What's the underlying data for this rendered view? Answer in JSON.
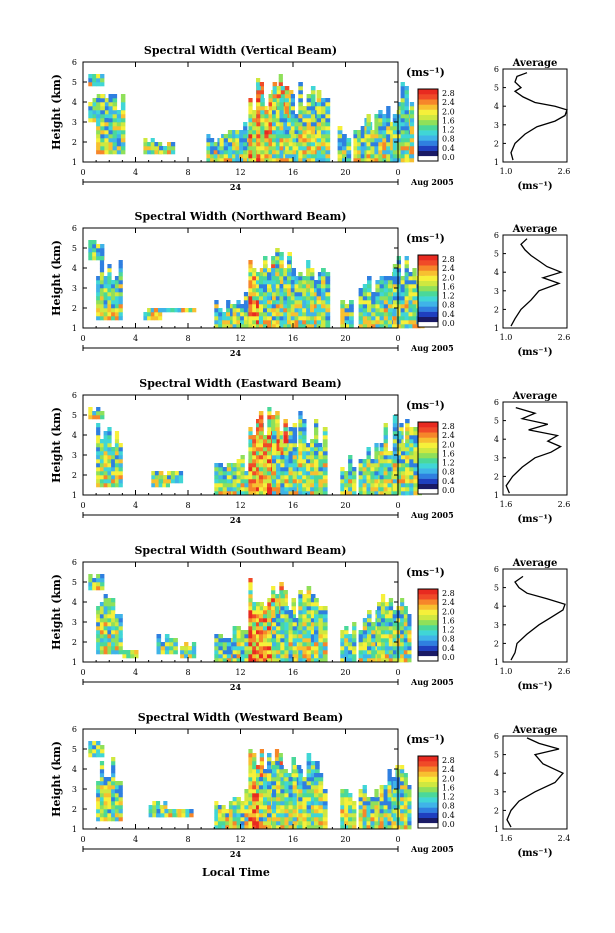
{
  "colorbar": {
    "unit_label": "(ms⁻¹)",
    "ticks": [
      "0.0",
      "0.4",
      "0.8",
      "1.2",
      "1.6",
      "2.0",
      "2.4",
      "2.8"
    ],
    "colors": [
      "#ffffff",
      "#1a1a66",
      "#1f3fbf",
      "#2f7fe0",
      "#3fb4e8",
      "#40d6d6",
      "#4ad89a",
      "#8fe05a",
      "#cfe840",
      "#f6f03a",
      "#f7c030",
      "#f6862a",
      "#f04a28",
      "#e82a20"
    ]
  },
  "footer": {
    "xlabel": "Local Time"
  },
  "chart_data": [
    {
      "type": "heatmap",
      "title": "Spectral Width (Vertical Beam)",
      "ylabel": "Height (km)",
      "yticks": [
        "1",
        "2",
        "3",
        "4",
        "5",
        "6"
      ],
      "xticks": [
        "0",
        "4",
        "8",
        "12",
        "16",
        "20",
        "0"
      ],
      "date_day": "24",
      "date_label": "Aug 2005",
      "ylim": [
        1,
        6
      ],
      "xlim": [
        0,
        24
      ],
      "cells": [
        [
          0.4,
          4.8,
          5.4,
          1.2
        ],
        [
          0.4,
          3.0,
          4.6,
          1.6
        ],
        [
          1.0,
          1.4,
          4.4,
          2.2
        ],
        [
          4.6,
          1.4,
          2.2,
          1.4
        ],
        [
          5.8,
          1.4,
          2.0,
          1.2
        ],
        [
          9.4,
          1.0,
          2.4,
          1.4
        ],
        [
          10.4,
          1.0,
          2.8,
          1.6
        ],
        [
          11.6,
          1.0,
          3.0,
          1.8
        ],
        [
          12.6,
          1.0,
          5.4,
          2.6
        ],
        [
          13.2,
          1.0,
          5.2,
          2.8
        ],
        [
          14.4,
          1.0,
          4.4,
          2.0
        ],
        [
          15.4,
          1.0,
          2.8,
          1.4
        ],
        [
          16.4,
          1.0,
          5.2,
          1.6
        ],
        [
          17.8,
          1.0,
          4.6,
          1.0
        ],
        [
          19.4,
          1.0,
          2.8,
          1.0
        ],
        [
          20.6,
          1.0,
          3.4,
          1.4
        ],
        [
          21.6,
          1.0,
          3.6,
          1.8
        ],
        [
          22.8,
          1.0,
          4.2,
          2.4
        ],
        [
          23.6,
          1.0,
          5.0,
          1.2
        ]
      ],
      "avg": {
        "title": "Average",
        "xticks": [
          "1.0",
          "2.6"
        ],
        "xlim": [
          1.0,
          2.6
        ],
        "xunit": "(ms⁻¹)",
        "yticks": [
          "1",
          "2",
          "3",
          "4",
          "5",
          "6"
        ],
        "ylim": [
          1,
          6
        ],
        "height": [
          1.1,
          1.5,
          2.0,
          2.5,
          2.9,
          3.2,
          3.5,
          3.8,
          4.0,
          4.2,
          4.5,
          4.8,
          5.0,
          5.3,
          5.6,
          5.8
        ],
        "value": [
          1.25,
          1.2,
          1.3,
          1.55,
          1.85,
          2.3,
          2.55,
          2.6,
          2.3,
          1.8,
          1.5,
          1.3,
          1.45,
          1.3,
          1.35,
          1.6
        ]
      }
    },
    {
      "type": "heatmap",
      "title": "Spectral Width (Northward Beam)",
      "ylabel": "Height (km)",
      "yticks": [
        "1",
        "2",
        "3",
        "4",
        "5",
        "6"
      ],
      "xticks": [
        "0",
        "4",
        "8",
        "12",
        "16",
        "20",
        "0"
      ],
      "date_day": "24",
      "date_label": "Aug 2005",
      "ylim": [
        1,
        6
      ],
      "xlim": [
        0,
        24
      ],
      "cells": [
        [
          0.4,
          4.4,
          5.4,
          1.2
        ],
        [
          1.0,
          1.4,
          4.6,
          2.0
        ],
        [
          4.6,
          1.4,
          2.0,
          1.4
        ],
        [
          5.4,
          1.8,
          2.0,
          2.2
        ],
        [
          7.2,
          1.8,
          2.0,
          1.4
        ],
        [
          10.0,
          1.0,
          2.4,
          1.8
        ],
        [
          11.4,
          1.0,
          2.8,
          2.0
        ],
        [
          12.6,
          1.0,
          5.4,
          2.6
        ],
        [
          13.4,
          1.0,
          5.0,
          2.8
        ],
        [
          14.4,
          1.0,
          4.6,
          2.0
        ],
        [
          16.4,
          1.0,
          5.2,
          1.8
        ],
        [
          17.8,
          1.0,
          4.4,
          1.0
        ],
        [
          19.6,
          1.0,
          2.6,
          1.0
        ],
        [
          21.0,
          1.0,
          3.6,
          1.6
        ],
        [
          22.6,
          1.0,
          4.6,
          2.2
        ],
        [
          23.6,
          1.0,
          5.0,
          2.4
        ]
      ],
      "avg": {
        "title": "Average",
        "xticks": [
          "1.0",
          "2.6"
        ],
        "xlim": [
          1.0,
          2.6
        ],
        "xunit": "(ms⁻¹)",
        "yticks": [
          "1",
          "2",
          "3",
          "4",
          "5",
          "6"
        ],
        "ylim": [
          1,
          6
        ],
        "height": [
          1.1,
          1.5,
          2.0,
          2.5,
          3.0,
          3.4,
          3.7,
          4.0,
          4.3,
          4.6,
          4.9,
          5.2,
          5.5,
          5.8
        ],
        "value": [
          1.2,
          1.3,
          1.45,
          1.7,
          1.9,
          2.4,
          2.0,
          2.45,
          2.1,
          1.9,
          1.7,
          1.55,
          1.45,
          1.6
        ]
      }
    },
    {
      "type": "heatmap",
      "title": "Spectral Width (Eastward Beam)",
      "ylabel": "Height (km)",
      "yticks": [
        "1",
        "2",
        "3",
        "4",
        "5",
        "6"
      ],
      "xticks": [
        "0",
        "4",
        "8",
        "12",
        "16",
        "20",
        "0"
      ],
      "date_day": "24",
      "date_label": "Aug 2005",
      "ylim": [
        1,
        6
      ],
      "xlim": [
        0,
        24
      ],
      "cells": [
        [
          0.4,
          4.8,
          5.4,
          1.2
        ],
        [
          1.0,
          1.4,
          4.6,
          2.0
        ],
        [
          5.2,
          1.4,
          2.2,
          1.4
        ],
        [
          5.8,
          1.6,
          2.2,
          1.8
        ],
        [
          10.0,
          1.0,
          2.6,
          1.6
        ],
        [
          11.4,
          1.0,
          3.0,
          1.8
        ],
        [
          12.6,
          1.0,
          5.4,
          2.6
        ],
        [
          13.4,
          1.0,
          5.2,
          2.8
        ],
        [
          14.4,
          1.0,
          4.6,
          2.2
        ],
        [
          16.4,
          1.0,
          5.2,
          1.8
        ],
        [
          17.6,
          1.0,
          4.4,
          1.0
        ],
        [
          19.6,
          1.0,
          3.0,
          1.2
        ],
        [
          21.0,
          1.0,
          3.8,
          1.8
        ],
        [
          22.6,
          1.0,
          4.6,
          2.4
        ],
        [
          23.6,
          1.0,
          5.0,
          2.2
        ]
      ],
      "avg": {
        "title": "Average",
        "xticks": [
          "1.6",
          "2.6"
        ],
        "xlim": [
          1.6,
          2.6
        ],
        "xunit": "(ms⁻¹)",
        "yticks": [
          "1",
          "2",
          "3",
          "4",
          "5",
          "6"
        ],
        "ylim": [
          1,
          6
        ],
        "height": [
          1.1,
          1.5,
          2.0,
          2.5,
          3.0,
          3.3,
          3.6,
          3.9,
          4.2,
          4.5,
          4.8,
          5.1,
          5.4,
          5.7
        ],
        "value": [
          1.7,
          1.65,
          1.75,
          1.9,
          2.1,
          2.35,
          2.5,
          2.3,
          2.45,
          2.0,
          2.3,
          1.9,
          2.1,
          1.8
        ]
      }
    },
    {
      "type": "heatmap",
      "title": "Spectral Width (Southward Beam)",
      "ylabel": "Height (km)",
      "yticks": [
        "1",
        "2",
        "3",
        "4",
        "5",
        "6"
      ],
      "xticks": [
        "0",
        "4",
        "8",
        "12",
        "16",
        "20",
        "0"
      ],
      "date_day": "24",
      "date_label": "Aug 2005",
      "ylim": [
        1,
        6
      ],
      "xlim": [
        0,
        24
      ],
      "cells": [
        [
          0.4,
          4.6,
          5.4,
          1.2
        ],
        [
          1.0,
          1.4,
          4.6,
          2.0
        ],
        [
          3.0,
          1.2,
          1.6,
          1.2
        ],
        [
          5.6,
          1.4,
          2.4,
          1.6
        ],
        [
          7.4,
          1.2,
          2.0,
          1.2
        ],
        [
          10.0,
          1.0,
          2.6,
          1.6
        ],
        [
          11.4,
          1.0,
          3.2,
          1.8
        ],
        [
          12.6,
          1.0,
          5.4,
          2.6
        ],
        [
          13.4,
          1.0,
          5.2,
          2.8
        ],
        [
          14.4,
          1.0,
          4.6,
          2.2
        ],
        [
          16.4,
          1.0,
          5.2,
          1.6
        ],
        [
          17.6,
          1.0,
          4.6,
          1.0
        ],
        [
          19.6,
          1.0,
          3.0,
          1.2
        ],
        [
          21.0,
          1.0,
          3.6,
          1.6
        ],
        [
          22.4,
          1.0,
          4.8,
          2.4
        ],
        [
          23.6,
          1.0,
          4.8,
          1.4
        ]
      ],
      "avg": {
        "title": "Average",
        "xticks": [
          "1.0",
          "2.6"
        ],
        "xlim": [
          1.0,
          2.6
        ],
        "xunit": "(ms⁻¹)",
        "yticks": [
          "1",
          "2",
          "3",
          "4",
          "5",
          "6"
        ],
        "ylim": [
          1,
          6
        ],
        "height": [
          1.1,
          1.5,
          2.0,
          2.5,
          3.0,
          3.4,
          3.8,
          4.1,
          4.4,
          4.7,
          5.0,
          5.3,
          5.6
        ],
        "value": [
          1.2,
          1.3,
          1.35,
          1.6,
          1.9,
          2.2,
          2.5,
          2.55,
          2.1,
          1.6,
          1.4,
          1.3,
          1.5
        ]
      }
    },
    {
      "type": "heatmap",
      "title": "Spectral Width (Westward Beam)",
      "ylabel": "Height (km)",
      "yticks": [
        "1",
        "2",
        "3",
        "4",
        "5",
        "6"
      ],
      "xticks": [
        "0",
        "4",
        "8",
        "12",
        "16",
        "20",
        "0"
      ],
      "date_day": "24",
      "date_label": "Aug 2005",
      "ylim": [
        1,
        6
      ],
      "xlim": [
        0,
        24
      ],
      "cells": [
        [
          0.4,
          4.6,
          5.4,
          1.2
        ],
        [
          1.0,
          1.4,
          4.6,
          2.0
        ],
        [
          5.0,
          1.6,
          2.4,
          1.4
        ],
        [
          5.6,
          1.6,
          2.0,
          2.4
        ],
        [
          7.2,
          1.6,
          2.0,
          1.2
        ],
        [
          10.0,
          1.0,
          2.4,
          1.4
        ],
        [
          11.4,
          1.0,
          3.0,
          1.8
        ],
        [
          12.6,
          1.0,
          5.4,
          2.6
        ],
        [
          13.4,
          1.0,
          5.0,
          2.8
        ],
        [
          14.4,
          1.0,
          4.4,
          2.2
        ],
        [
          16.4,
          1.0,
          5.0,
          1.6
        ],
        [
          17.6,
          1.0,
          4.2,
          1.0
        ],
        [
          19.6,
          1.0,
          3.0,
          1.2
        ],
        [
          21.0,
          1.0,
          3.6,
          1.8
        ],
        [
          22.6,
          1.0,
          4.4,
          2.4
        ],
        [
          23.6,
          1.0,
          4.6,
          1.4
        ]
      ],
      "avg": {
        "title": "Average",
        "xticks": [
          "1.6",
          "2.4"
        ],
        "xlim": [
          1.6,
          2.4
        ],
        "xunit": "(ms⁻¹)",
        "yticks": [
          "1",
          "2",
          "3",
          "4",
          "5",
          "6"
        ],
        "ylim": [
          1,
          6
        ],
        "height": [
          1.1,
          1.5,
          2.0,
          2.5,
          3.0,
          3.5,
          4.0,
          4.5,
          5.0,
          5.3,
          5.6,
          5.9
        ],
        "value": [
          1.7,
          1.65,
          1.7,
          1.8,
          2.0,
          2.25,
          2.35,
          2.1,
          2.0,
          2.3,
          2.05,
          1.9
        ]
      }
    }
  ]
}
